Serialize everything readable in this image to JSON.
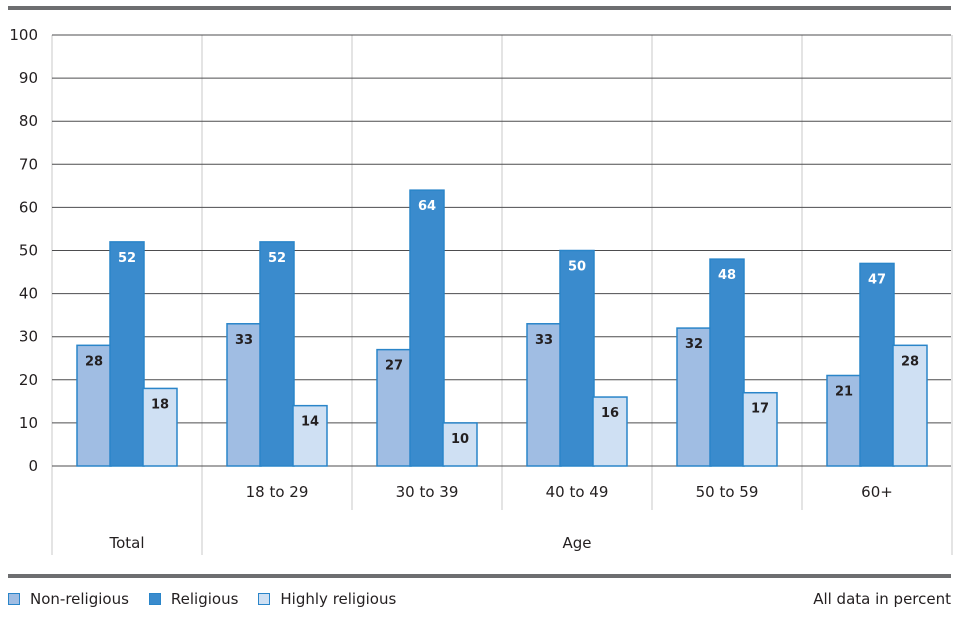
{
  "chart_data": {
    "type": "bar",
    "categories": [
      "Total",
      "18 to 29",
      "30 to 39",
      "40 to 49",
      "50 to 59",
      "60+"
    ],
    "category_labels": [
      "",
      "18 to 29",
      "30 to 39",
      "40 to 49",
      "50 to 59",
      "60+"
    ],
    "groups": [
      {
        "label": "Total",
        "categories": [
          "Total"
        ]
      },
      {
        "label": "Age",
        "categories": [
          "18 to 29",
          "30 to 39",
          "40 to 49",
          "50 to 59",
          "60+"
        ]
      }
    ],
    "series": [
      {
        "name": "Non-religious",
        "color": "#a0bde3",
        "values": [
          28,
          33,
          27,
          33,
          32,
          21
        ]
      },
      {
        "name": "Religious",
        "color": "#3a8bcd",
        "values": [
          52,
          52,
          64,
          50,
          48,
          47
        ]
      },
      {
        "name": "Highly religious",
        "color": "#cfe0f3",
        "values": [
          18,
          14,
          10,
          16,
          17,
          28
        ]
      }
    ],
    "yticks": [
      0,
      10,
      20,
      30,
      40,
      50,
      60,
      70,
      80,
      90,
      100
    ],
    "ylim": [
      0,
      100
    ],
    "grid": true,
    "legend": "bottom-left",
    "note": "All data in percent",
    "colors": {
      "bar_border": "#2a85c9",
      "grid": "#4d4d4f",
      "divider": "#c8c8c8",
      "rule": "#6d6e70"
    }
  }
}
